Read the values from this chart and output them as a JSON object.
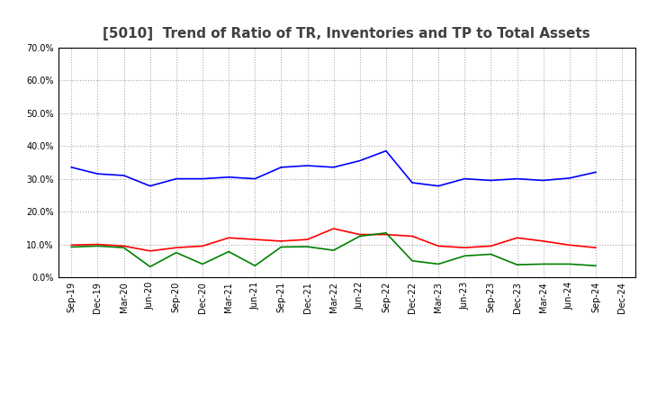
{
  "title": "[5010]  Trend of Ratio of TR, Inventories and TP to Total Assets",
  "x_labels": [
    "Sep-19",
    "Dec-19",
    "Mar-20",
    "Jun-20",
    "Sep-20",
    "Dec-20",
    "Mar-21",
    "Jun-21",
    "Sep-21",
    "Dec-21",
    "Mar-22",
    "Jun-22",
    "Sep-22",
    "Dec-22",
    "Mar-23",
    "Jun-23",
    "Sep-23",
    "Dec-23",
    "Mar-24",
    "Jun-24",
    "Sep-24",
    "Dec-24"
  ],
  "trade_receivables": [
    0.098,
    0.1,
    0.095,
    0.08,
    0.09,
    0.095,
    0.12,
    0.115,
    0.11,
    0.115,
    0.148,
    0.13,
    0.13,
    0.125,
    0.095,
    0.09,
    0.095,
    0.12,
    0.11,
    0.098,
    0.09,
    null
  ],
  "inventories": [
    0.335,
    0.315,
    0.31,
    0.278,
    0.3,
    0.3,
    0.305,
    0.3,
    0.335,
    0.34,
    0.335,
    0.355,
    0.385,
    0.288,
    0.278,
    0.3,
    0.295,
    0.3,
    0.295,
    0.302,
    0.32,
    null
  ],
  "trade_payables": [
    0.092,
    0.095,
    0.09,
    0.032,
    0.075,
    0.04,
    0.078,
    0.035,
    0.092,
    0.093,
    0.082,
    0.125,
    0.135,
    0.05,
    0.04,
    0.065,
    0.07,
    0.038,
    0.04,
    0.04,
    0.035,
    null
  ],
  "tr_color": "#ff0000",
  "inv_color": "#0000ff",
  "tp_color": "#008000",
  "ylim": [
    0.0,
    0.7
  ],
  "yticks": [
    0.0,
    0.1,
    0.2,
    0.3,
    0.4,
    0.5,
    0.6,
    0.7
  ],
  "background_color": "#ffffff",
  "grid_color": "#aaaaaa",
  "title_color": "#404040",
  "title_fontsize": 11,
  "tick_fontsize": 7,
  "legend_fontsize": 8.5
}
